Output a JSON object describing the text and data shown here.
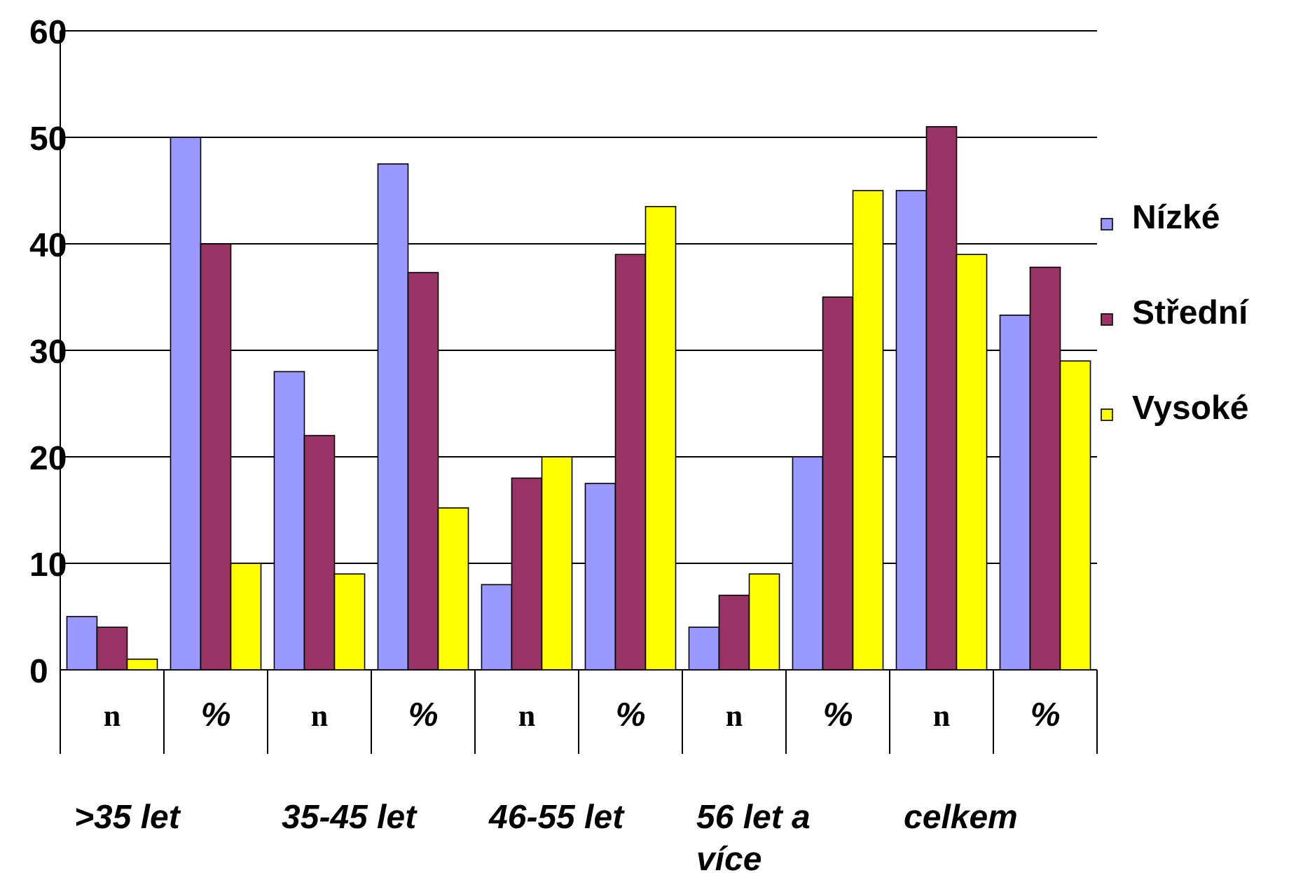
{
  "chart_data": {
    "type": "bar",
    "categories": [
      "n",
      "%",
      "n",
      "%",
      "n",
      "%",
      "n",
      "%",
      "n",
      "%"
    ],
    "series": [
      {
        "name": "Nízké",
        "color": "#9999ff",
        "values": [
          5,
          50,
          28,
          47.5,
          8,
          17.5,
          4,
          20,
          45,
          33.3
        ]
      },
      {
        "name": "Střední",
        "color": "#993366",
        "values": [
          4,
          40,
          22,
          37.3,
          18,
          39,
          7,
          35,
          51,
          37.8
        ]
      },
      {
        "name": "Vysoké",
        "color": "#ffff00",
        "values": [
          1,
          10,
          9,
          15.2,
          20,
          43.5,
          9,
          45,
          39,
          29
        ]
      }
    ],
    "ylim": [
      0,
      60
    ],
    "yticks": [
      0,
      10,
      20,
      30,
      40,
      50,
      60
    ],
    "grid": "y",
    "legend": "right",
    "annotations": [
      ">35 let",
      "35-45 let",
      "46-55 let",
      "56 let a více",
      "celkem"
    ]
  }
}
